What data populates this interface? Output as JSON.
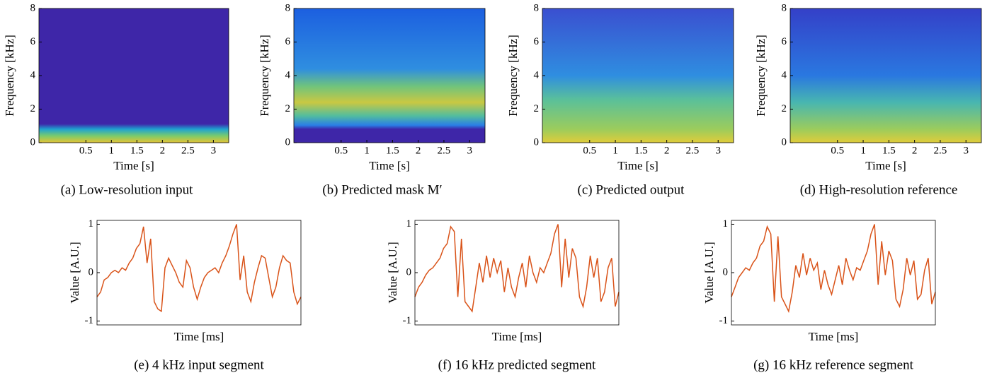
{
  "chart_data": [
    {
      "type": "heatmap",
      "xlabel": "Time [s]",
      "ylabel": "Frequency [kHz]",
      "caption": "(a) Low-resolution input",
      "xlim": [
        -0.42,
        3.3
      ],
      "xticks": [
        0.5,
        1,
        1.5,
        2,
        2.5,
        3
      ],
      "ylim": [
        0,
        8
      ],
      "yticks": [
        0,
        2,
        4,
        6,
        8
      ]
    },
    {
      "type": "heatmap",
      "xlabel": "Time [s]",
      "ylabel": "Frequency [kHz]",
      "caption": "(b) Predicted mask M′",
      "xlim": [
        -0.42,
        3.3
      ],
      "xticks": [
        0.5,
        1,
        1.5,
        2,
        2.5,
        3
      ],
      "ylim": [
        0,
        8
      ],
      "yticks": [
        0,
        2,
        4,
        6,
        8
      ]
    },
    {
      "type": "heatmap",
      "xlabel": "Time [s]",
      "ylabel": "Frequency [kHz]",
      "caption": "(c) Predicted output",
      "xlim": [
        -0.42,
        3.3
      ],
      "xticks": [
        0.5,
        1,
        1.5,
        2,
        2.5,
        3
      ],
      "ylim": [
        0,
        8
      ],
      "yticks": [
        0,
        2,
        4,
        6,
        8
      ]
    },
    {
      "type": "heatmap",
      "xlabel": "Time [s]",
      "ylabel": "Frequency [kHz]",
      "caption": "(d) High-resolution reference",
      "xlim": [
        -0.42,
        3.3
      ],
      "xticks": [
        0.5,
        1,
        1.5,
        2,
        2.5,
        3
      ],
      "ylim": [
        0,
        8
      ],
      "yticks": [
        0,
        2,
        4,
        6,
        8
      ]
    },
    {
      "type": "line",
      "xlabel": "Time [ms]",
      "ylabel": "Value [A.U.]",
      "caption": "(e) 4 kHz input segment",
      "color": "#d95319",
      "ylim": [
        -1.08,
        1.08
      ],
      "yticks": [
        -1,
        0,
        1
      ],
      "values": [
        -0.5,
        -0.4,
        -0.15,
        -0.1,
        0,
        0.05,
        0,
        0.1,
        0.05,
        0.2,
        0.3,
        0.5,
        0.6,
        0.95,
        0.2,
        0.7,
        -0.6,
        -0.75,
        -0.8,
        0.1,
        0.3,
        0.15,
        0,
        -0.2,
        -0.3,
        0.25,
        0.1,
        -0.3,
        -0.55,
        -0.3,
        -0.1,
        0,
        0.05,
        0.1,
        0,
        0.2,
        0.35,
        0.55,
        0.8,
        1.0,
        -0.15,
        0.35,
        -0.4,
        -0.6,
        -0.2,
        0.1,
        0.35,
        0.3,
        -0.1,
        -0.5,
        -0.3,
        0.1,
        0.35,
        0.25,
        0.2,
        -0.4,
        -0.65,
        -0.5
      ]
    },
    {
      "type": "line",
      "xlabel": "Time [ms]",
      "ylabel": "Value [A.U.]",
      "caption": "(f) 16 kHz predicted segment",
      "color": "#d95319",
      "ylim": [
        -1.08,
        1.08
      ],
      "yticks": [
        -1,
        0,
        1
      ],
      "values": [
        -0.5,
        -0.3,
        -0.2,
        -0.05,
        0.05,
        0.1,
        0.2,
        0.3,
        0.5,
        0.6,
        0.95,
        0.85,
        -0.5,
        0.7,
        -0.6,
        -0.7,
        -0.8,
        -0.3,
        0.2,
        -0.2,
        0.35,
        -0.1,
        0.3,
        0,
        0.25,
        -0.4,
        0.1,
        -0.3,
        -0.5,
        -0.1,
        0.2,
        -0.3,
        0.35,
        0,
        -0.2,
        0.1,
        0,
        0.2,
        0.4,
        0.8,
        1.0,
        -0.3,
        0.7,
        -0.1,
        0.5,
        0.3,
        -0.5,
        -0.7,
        -0.3,
        0.35,
        -0.1,
        0.3,
        -0.6,
        -0.4,
        0.1,
        0.3,
        -0.7,
        -0.4
      ]
    },
    {
      "type": "line",
      "xlabel": "Time [ms]",
      "ylabel": "Value [A.U.]",
      "caption": "(g) 16 kHz reference segment",
      "color": "#d95319",
      "ylim": [
        -1.08,
        1.08
      ],
      "yticks": [
        -1,
        0,
        1
      ],
      "values": [
        -0.5,
        -0.3,
        -0.1,
        0,
        0.1,
        0.05,
        0.2,
        0.3,
        0.55,
        0.65,
        0.95,
        0.8,
        -0.6,
        0.75,
        -0.5,
        -0.65,
        -0.8,
        -0.4,
        0.15,
        -0.1,
        0.4,
        -0.05,
        0.3,
        0.05,
        0.2,
        -0.35,
        0.05,
        -0.25,
        -0.45,
        -0.15,
        0.15,
        -0.25,
        0.3,
        0.05,
        -0.15,
        0.1,
        0.05,
        0.25,
        0.45,
        0.8,
        1.0,
        -0.25,
        0.65,
        -0.05,
        0.45,
        0.25,
        -0.55,
        -0.7,
        -0.35,
        0.3,
        -0.05,
        0.25,
        -0.55,
        -0.45,
        0.05,
        0.3,
        -0.65,
        -0.4
      ]
    }
  ]
}
